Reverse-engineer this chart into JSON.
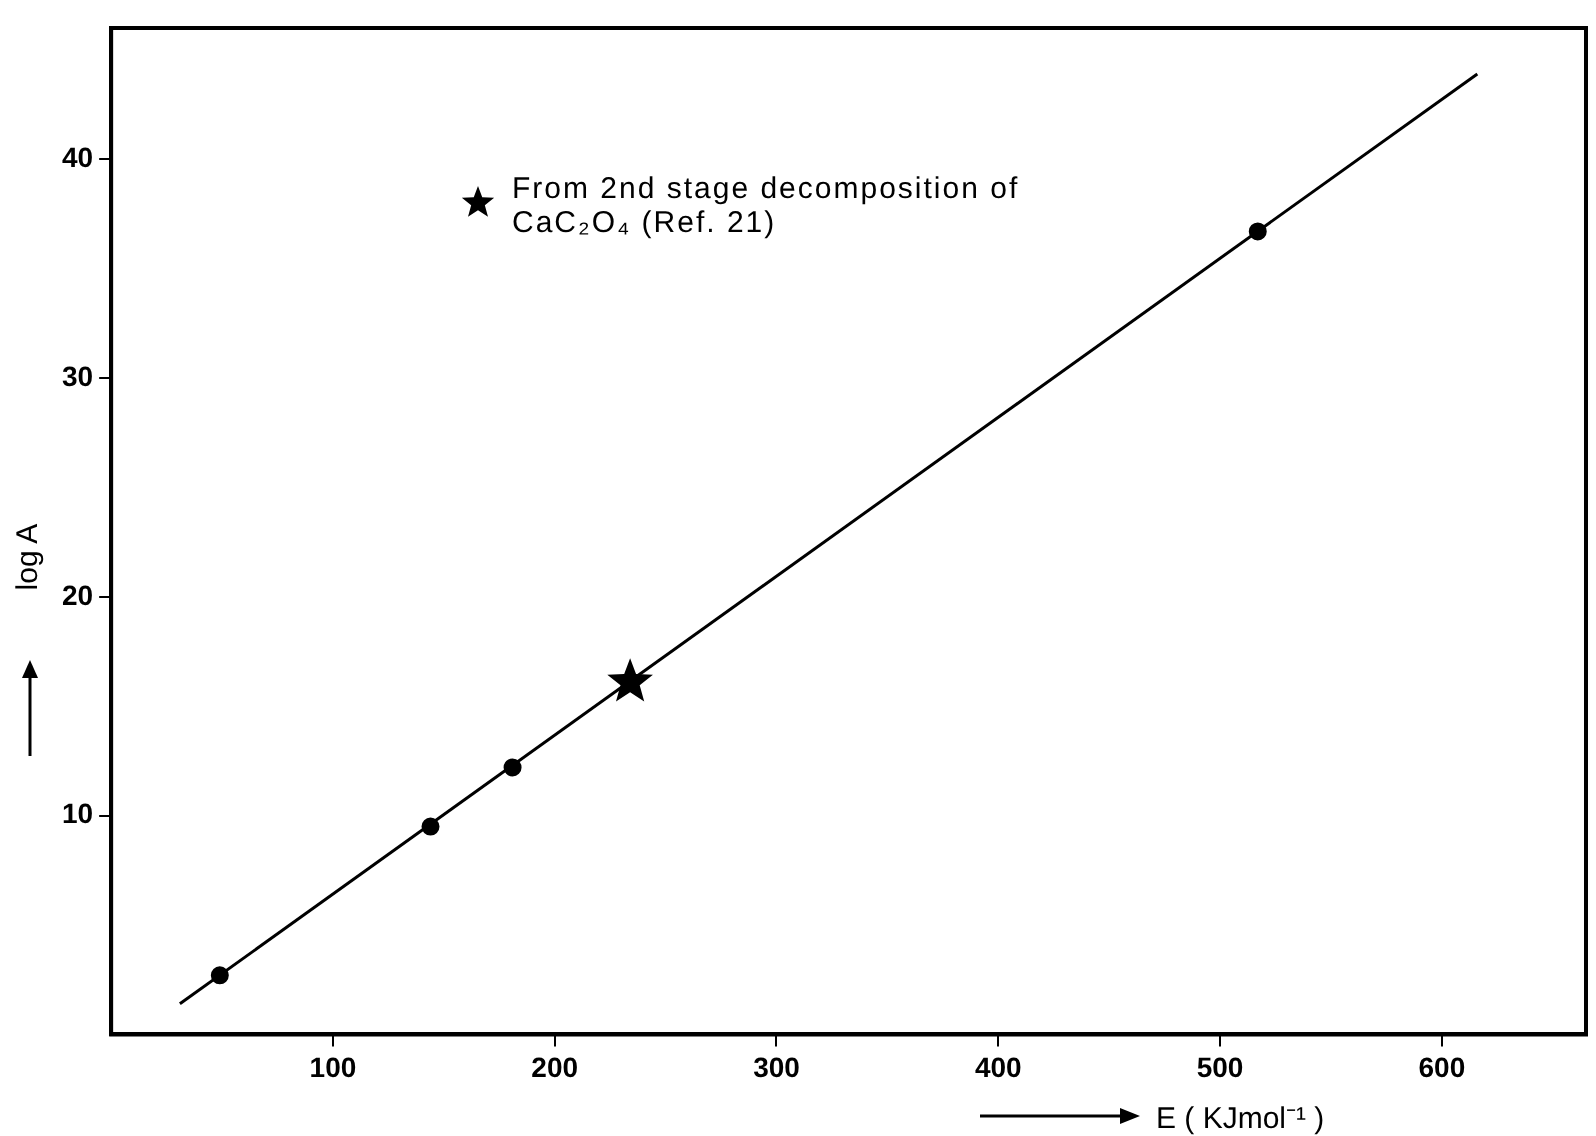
{
  "chart_data": {
    "type": "scatter",
    "xlabel": "E ( KJmol⁻¹ )",
    "ylabel": "log A",
    "xlim": [
      0,
      665
    ],
    "ylim": [
      0,
      46
    ],
    "xticks": [
      100,
      200,
      300,
      400,
      500,
      600
    ],
    "yticks": [
      10,
      20,
      30,
      40
    ],
    "grid": false,
    "legend": "top left",
    "series": [
      {
        "type": "line",
        "color": "#000000",
        "x": [
          31,
          616
        ],
        "values": [
          1.4,
          43.9
        ],
        "marker": "none",
        "line_style": "solid"
      },
      {
        "type": "scatter",
        "color": "#000000",
        "x": [
          49,
          144,
          181,
          517
        ],
        "values": [
          2.7,
          9.5,
          12.2,
          36.7
        ],
        "marker": "circle"
      },
      {
        "type": "scatter",
        "name": "From 2nd stage decomposition of CaC₂O₄ (Ref. 21)",
        "color": "#000000",
        "x": [
          234
        ],
        "values": [
          16.1
        ],
        "marker": "star"
      }
    ]
  }
}
